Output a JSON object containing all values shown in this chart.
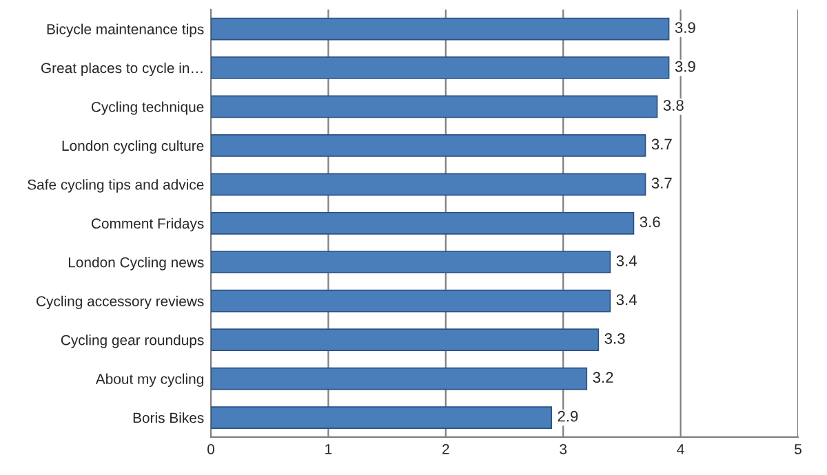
{
  "chart_data": {
    "type": "bar",
    "orientation": "horizontal",
    "categories": [
      "Bicycle maintenance tips",
      "Great places to cycle in…",
      "Cycling technique",
      "London cycling culture",
      "Safe cycling tips and advice",
      "Comment Fridays",
      "London Cycling news",
      "Cycling accessory reviews",
      "Cycling gear roundups",
      "About my cycling",
      "Boris Bikes"
    ],
    "values": [
      3.9,
      3.9,
      3.8,
      3.7,
      3.7,
      3.6,
      3.4,
      3.4,
      3.3,
      3.2,
      2.9
    ],
    "color": "#4a7ebb",
    "xlim": [
      0,
      5
    ],
    "xticks": [
      0,
      1,
      2,
      3,
      4,
      5
    ],
    "grid": "x",
    "data_labels": true
  }
}
